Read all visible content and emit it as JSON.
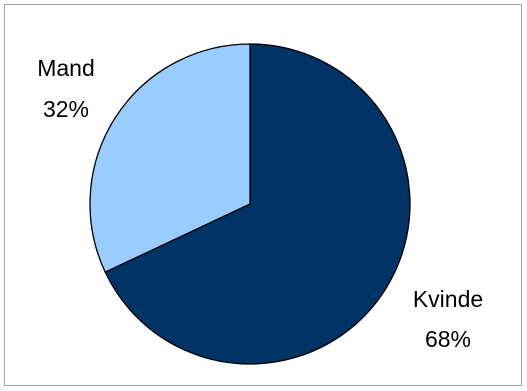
{
  "chart_data": {
    "type": "pie",
    "title": "",
    "slices": [
      {
        "label": "Kvinde",
        "percent_label": "68%",
        "value": 68,
        "color": "#003366"
      },
      {
        "label": "Mand",
        "percent_label": "32%",
        "value": 32,
        "color": "#99ccff"
      }
    ],
    "start_angle_deg": 0,
    "direction": "clockwise",
    "legend": "none",
    "data_labels": "outside",
    "border_color": "#000000"
  }
}
